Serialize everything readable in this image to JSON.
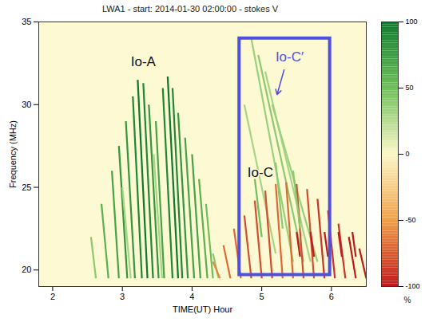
{
  "chart_data": {
    "type": "spectrogram",
    "title": "LWA1 - start: 2014-01-30 02:00:00 - stokes V",
    "x_label": "TIME(UT) Hour",
    "y_label": "Frequency (MHz)",
    "xlim": [
      1.8,
      6.5
    ],
    "ylim": [
      19,
      35
    ],
    "xticks": [
      2,
      3,
      4,
      5,
      6
    ],
    "yticks": [
      20,
      25,
      30,
      35
    ],
    "colorbar": {
      "range": [
        -100,
        100
      ],
      "ticks": [
        100,
        50,
        0,
        -50,
        -100
      ],
      "label": "%",
      "colors": [
        "#c0181c",
        "#f0a048",
        "#fcf7c8",
        "#6fbf5a",
        "#0c7a2c"
      ]
    },
    "arcs": [
      {
        "x": [
          2.55,
          2.62
        ],
        "y": [
          22,
          19.5
        ],
        "value": 40
      },
      {
        "x": [
          2.7,
          2.8
        ],
        "y": [
          24,
          19.5
        ],
        "value": 60
      },
      {
        "x": [
          2.85,
          2.95
        ],
        "y": [
          26,
          19.5
        ],
        "value": 70
      },
      {
        "x": [
          2.95,
          3.07
        ],
        "y": [
          27.5,
          19.5
        ],
        "value": 80
      },
      {
        "x": [
          3.0,
          3.12
        ],
        "y": [
          25,
          19.5
        ],
        "value": 30
      },
      {
        "x": [
          3.05,
          3.18
        ],
        "y": [
          29,
          19.5
        ],
        "value": 80
      },
      {
        "x": [
          3.15,
          3.28
        ],
        "y": [
          30.5,
          19.5
        ],
        "value": 90
      },
      {
        "x": [
          3.22,
          3.36
        ],
        "y": [
          31.5,
          19.5
        ],
        "value": 100
      },
      {
        "x": [
          3.3,
          3.44
        ],
        "y": [
          31.3,
          19.5
        ],
        "value": 90
      },
      {
        "x": [
          3.38,
          3.52
        ],
        "y": [
          30,
          19.5
        ],
        "value": 80
      },
      {
        "x": [
          3.45,
          3.57
        ],
        "y": [
          27,
          19.5
        ],
        "value": 30
      },
      {
        "x": [
          3.48,
          3.6
        ],
        "y": [
          29,
          19.5
        ],
        "value": 70
      },
      {
        "x": [
          3.58,
          3.72
        ],
        "y": [
          31,
          19.5
        ],
        "value": 90
      },
      {
        "x": [
          3.65,
          3.8
        ],
        "y": [
          31.7,
          19.5
        ],
        "value": 100
      },
      {
        "x": [
          3.72,
          3.86
        ],
        "y": [
          31,
          19.5
        ],
        "value": 90
      },
      {
        "x": [
          3.8,
          3.94
        ],
        "y": [
          29.5,
          19.5
        ],
        "value": 80
      },
      {
        "x": [
          3.9,
          4.03
        ],
        "y": [
          28,
          19.5
        ],
        "value": 70
      },
      {
        "x": [
          4.0,
          4.12
        ],
        "y": [
          27,
          19.5
        ],
        "value": 70
      },
      {
        "x": [
          4.1,
          4.22
        ],
        "y": [
          25.5,
          19.5
        ],
        "value": 60
      },
      {
        "x": [
          4.2,
          4.3
        ],
        "y": [
          24,
          19.5
        ],
        "value": 50
      },
      {
        "x": [
          4.3,
          4.38
        ],
        "y": [
          21,
          19.5
        ],
        "value": 40
      },
      {
        "x": [
          4.85,
          5.45
        ],
        "y": [
          34,
          20.5
        ],
        "value": 35
      },
      {
        "x": [
          4.95,
          5.6
        ],
        "y": [
          33,
          20.5
        ],
        "value": 40
      },
      {
        "x": [
          5.05,
          5.7
        ],
        "y": [
          32,
          20.5
        ],
        "value": 30
      },
      {
        "x": [
          5.15,
          5.8
        ],
        "y": [
          30,
          20.5
        ],
        "value": 35
      },
      {
        "x": [
          4.75,
          5.2
        ],
        "y": [
          30,
          21
        ],
        "value": 30
      },
      {
        "x": [
          4.3,
          4.4
        ],
        "y": [
          20.5,
          19.5
        ],
        "value": -60
      },
      {
        "x": [
          4.45,
          4.55
        ],
        "y": [
          21.5,
          19.5
        ],
        "value": -70
      },
      {
        "x": [
          4.6,
          4.7
        ],
        "y": [
          22.5,
          19.5
        ],
        "value": -70
      },
      {
        "x": [
          4.75,
          4.85
        ],
        "y": [
          23.3,
          19.5
        ],
        "value": -80
      },
      {
        "x": [
          4.9,
          5.0
        ],
        "y": [
          24.2,
          19.5
        ],
        "value": -80
      },
      {
        "x": [
          5.05,
          5.15
        ],
        "y": [
          24.8,
          19.5
        ],
        "value": -80
      },
      {
        "x": [
          5.2,
          5.3
        ],
        "y": [
          25.2,
          19.5
        ],
        "value": -70
      },
      {
        "x": [
          5.35,
          5.45
        ],
        "y": [
          25.3,
          19.5
        ],
        "value": -70
      },
      {
        "x": [
          5.5,
          5.6
        ],
        "y": [
          25.2,
          19.5
        ],
        "value": -80
      },
      {
        "x": [
          5.65,
          5.75
        ],
        "y": [
          24.9,
          19.5
        ],
        "value": -80
      },
      {
        "x": [
          5.8,
          5.9
        ],
        "y": [
          24.3,
          19.5
        ],
        "value": -90
      },
      {
        "x": [
          5.95,
          6.05
        ],
        "y": [
          23.6,
          19.5
        ],
        "value": -90
      },
      {
        "x": [
          6.1,
          6.2
        ],
        "y": [
          22.8,
          19.5
        ],
        "value": -90
      },
      {
        "x": [
          6.25,
          6.35
        ],
        "y": [
          22,
          19.5
        ],
        "value": -100
      },
      {
        "x": [
          6.4,
          6.5
        ],
        "y": [
          21.3,
          19.5
        ],
        "value": -100
      },
      {
        "x": [
          5.5,
          5.55
        ],
        "y": [
          22.3,
          20.8
        ],
        "value": -100
      },
      {
        "x": [
          5.7,
          5.75
        ],
        "y": [
          22.3,
          20.8
        ],
        "value": -100
      },
      {
        "x": [
          5.9,
          5.95
        ],
        "y": [
          22.3,
          20.8
        ],
        "value": -100
      },
      {
        "x": [
          6.1,
          6.15
        ],
        "y": [
          22.3,
          20.8
        ],
        "value": -100
      },
      {
        "x": [
          6.3,
          6.35
        ],
        "y": [
          22.3,
          20.8
        ],
        "value": -100
      },
      {
        "x": [
          4.9,
          5.0
        ],
        "y": [
          25.5,
          22
        ],
        "value": 50
      },
      {
        "x": [
          5.2,
          5.3
        ],
        "y": [
          26.5,
          22.5
        ],
        "value": 40
      },
      {
        "x": [
          5.45,
          5.55
        ],
        "y": [
          26,
          22.5
        ],
        "value": 40
      }
    ],
    "box": {
      "x1": 4.68,
      "x2": 5.98,
      "y1": 19.7,
      "y2": 34,
      "color": "#5050e0"
    },
    "annotations": [
      {
        "text": "Io-A",
        "x": 3.3,
        "y": 32.6,
        "color": "#111111"
      },
      {
        "text": "Io-C′",
        "x": 5.4,
        "y": 32.9,
        "color": "#5050e0",
        "arrow_to": [
          5.22,
          30.6
        ]
      },
      {
        "text": "Io-C",
        "x": 4.98,
        "y": 25.9,
        "color": "#111111"
      }
    ]
  }
}
